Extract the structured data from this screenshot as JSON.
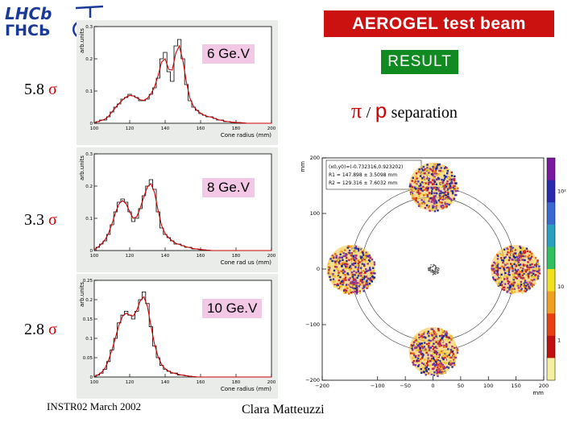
{
  "header": {
    "title": "AEROGEL  test beam",
    "result": "RESULT",
    "separation": {
      "pi": "π",
      "slash": "/",
      "p": "p",
      "word": "separation"
    }
  },
  "logo": {
    "text_top": "LHCb",
    "text_bottom": "ГНСЬ"
  },
  "footer": {
    "conference": "INSTR02  March 2002",
    "author": "Clara Matteuzzi"
  },
  "colors": {
    "title_bg": "#cc1111",
    "result_bg": "#118a22",
    "sigma": "#cc0000",
    "energy_bg": "#f2c8e6",
    "fit": "#cc0000",
    "hist": "#000000"
  },
  "chart_data": [
    {
      "type": "line",
      "energy": "6 Ge.V",
      "significance": {
        "value": "5.8",
        "symbol": "σ"
      },
      "xlabel": "Cone radius (mm)",
      "ylabel": "arb.units",
      "xlim": [
        100,
        200
      ],
      "ylim": [
        0,
        0.3
      ],
      "xticks": [
        "100",
        "120",
        "140",
        "160",
        "180",
        "200"
      ],
      "yticks": [
        "0",
        "0.1",
        "0.2",
        "0.3"
      ],
      "series": [
        {
          "x": [
            100,
            102,
            104,
            106,
            108,
            110,
            112,
            114,
            116,
            118,
            120,
            122,
            124,
            126,
            128,
            130,
            132,
            134,
            136,
            138,
            140,
            142,
            144,
            146,
            148,
            150,
            152,
            154,
            156,
            158,
            160,
            162,
            164,
            166,
            168,
            170,
            172,
            174,
            176,
            178,
            180,
            182,
            184,
            186,
            188,
            190,
            192,
            194,
            196,
            198,
            200
          ],
          "values": [
            0,
            0.005,
            0.01,
            0.01,
            0.02,
            0.035,
            0.05,
            0.06,
            0.075,
            0.08,
            0.09,
            0.085,
            0.08,
            0.07,
            0.07,
            0.075,
            0.09,
            0.11,
            0.14,
            0.2,
            0.22,
            0.16,
            0.13,
            0.24,
            0.26,
            0.2,
            0.12,
            0.07,
            0.05,
            0.04,
            0.03,
            0.025,
            0.02,
            0.02,
            0.015,
            0.01,
            0.01,
            0.005,
            0.005,
            0.003,
            0.002,
            0.002,
            0.001,
            0,
            0,
            0,
            0,
            0,
            0,
            0,
            0
          ]
        }
      ]
    },
    {
      "type": "line",
      "energy": "8 Ge.V",
      "significance": {
        "value": "3.3",
        "symbol": "σ"
      },
      "xlabel": "Cone rad us (mm)",
      "ylabel": "arb.units",
      "xlim": [
        100,
        200
      ],
      "ylim": [
        0,
        0.3
      ],
      "xticks": [
        "100",
        "120",
        "140",
        "160",
        "180",
        "200"
      ],
      "yticks": [
        "0",
        "0.1",
        "0.2",
        "0.3"
      ],
      "series": [
        {
          "x": [
            100,
            102,
            104,
            106,
            108,
            110,
            112,
            114,
            116,
            118,
            120,
            122,
            124,
            126,
            128,
            130,
            132,
            134,
            136,
            138,
            140,
            142,
            144,
            146,
            148,
            150,
            152,
            154,
            156,
            158,
            160,
            162,
            164,
            166,
            168,
            170,
            172,
            174,
            176,
            178,
            180,
            182,
            184,
            186,
            188,
            190,
            192,
            194,
            196,
            198,
            200
          ],
          "values": [
            0,
            0.01,
            0.02,
            0.03,
            0.05,
            0.08,
            0.12,
            0.15,
            0.16,
            0.15,
            0.12,
            0.09,
            0.1,
            0.13,
            0.17,
            0.2,
            0.22,
            0.19,
            0.12,
            0.07,
            0.05,
            0.04,
            0.03,
            0.02,
            0.02,
            0.015,
            0.01,
            0.01,
            0.005,
            0.005,
            0.003,
            0.002,
            0.001,
            0,
            0,
            0,
            0,
            0,
            0,
            0,
            0,
            0,
            0,
            0,
            0,
            0,
            0,
            0,
            0,
            0,
            0
          ]
        }
      ]
    },
    {
      "type": "line",
      "energy": "10 Ge.V",
      "significance": {
        "value": "2.8",
        "symbol": "σ"
      },
      "xlabel": "Cone radius (mm)",
      "ylabel": "arb.units",
      "xlim": [
        100,
        200
      ],
      "ylim": [
        0,
        0.25
      ],
      "xticks": [
        "100",
        "120",
        "140",
        "160",
        "180",
        "200"
      ],
      "yticks": [
        "0",
        "0.05",
        "0.1",
        "0.15",
        "0.2",
        "0.25"
      ],
      "series": [
        {
          "x": [
            100,
            102,
            104,
            106,
            108,
            110,
            112,
            114,
            116,
            118,
            120,
            122,
            124,
            126,
            128,
            130,
            132,
            134,
            136,
            138,
            140,
            142,
            144,
            146,
            148,
            150,
            152,
            154,
            156,
            158,
            160,
            162,
            164,
            166,
            168,
            170,
            172,
            174,
            176,
            178,
            180,
            182,
            184,
            186,
            188,
            190,
            192,
            194,
            196,
            198,
            200
          ],
          "values": [
            0,
            0.005,
            0.01,
            0.02,
            0.04,
            0.07,
            0.1,
            0.14,
            0.16,
            0.17,
            0.16,
            0.15,
            0.17,
            0.2,
            0.22,
            0.19,
            0.13,
            0.08,
            0.05,
            0.03,
            0.02,
            0.015,
            0.01,
            0.01,
            0.005,
            0.005,
            0.003,
            0.002,
            0.001,
            0,
            0,
            0,
            0,
            0,
            0,
            0,
            0,
            0,
            0,
            0,
            0,
            0,
            0,
            0,
            0,
            0,
            0,
            0,
            0,
            0,
            0
          ]
        }
      ]
    },
    {
      "type": "scatter",
      "title": "",
      "legend": [
        "(x0,y0)=(-0.732316,0.923202)",
        "R1 = 147.898 ± 3.5098 mm",
        "R2 = 129.316 ± 7.6032 mm"
      ],
      "ylabel": "mm",
      "xlabel": "mm",
      "xlim": [
        -200,
        200
      ],
      "ylim": [
        -200,
        200
      ],
      "xticks": [
        "-200",
        "-100",
        "-50",
        "0",
        "50",
        "100",
        "150",
        "200"
      ],
      "yticks": [
        "200",
        "100",
        "0",
        "-100",
        "-200"
      ],
      "colorbar_ticks": [
        "10²",
        "10",
        "1"
      ],
      "rings_mm": [
        147.898,
        129.316
      ],
      "blobs": [
        {
          "x": 0,
          "y": 148
        },
        {
          "x": 148,
          "y": 0
        },
        {
          "x": 0,
          "y": -148
        },
        {
          "x": -148,
          "y": 0
        }
      ]
    }
  ]
}
